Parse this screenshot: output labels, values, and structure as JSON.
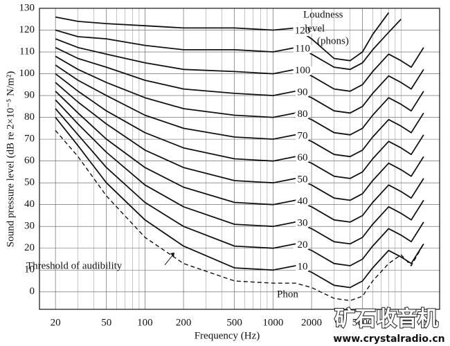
{
  "chart_data": {
    "type": "line",
    "x_label": "Frequency (Hz)",
    "y_label": "Sound pressure level (dB re 2×10⁻⁵ N/m²)",
    "x_scale": "log",
    "xlim": [
      15,
      20000
    ],
    "ylim": [
      -8,
      130
    ],
    "xticks": [
      20,
      50,
      100,
      200,
      500,
      1000,
      2000,
      5000
    ],
    "xminor": [
      30,
      40,
      60,
      70,
      80,
      90,
      300,
      400,
      600,
      700,
      800,
      900,
      3000,
      4000,
      6000,
      7000,
      8000,
      9000,
      10000
    ],
    "yticks": [
      0,
      10,
      20,
      30,
      40,
      50,
      60,
      70,
      80,
      90,
      100,
      110,
      120,
      130
    ],
    "grid": true,
    "x": [
      20,
      30,
      50,
      100,
      200,
      500,
      1000,
      1500,
      2000,
      3000,
      4000,
      5000,
      6000,
      8000,
      10000,
      12000,
      15000
    ],
    "series": [
      {
        "name": "Threshold of audibility",
        "color": "#111111",
        "style": "dashed",
        "values": [
          74,
          62,
          44,
          25,
          13,
          5,
          4,
          4,
          2,
          -3,
          -4,
          -2,
          5,
          13,
          17,
          12,
          22
        ]
      },
      {
        "name": "10",
        "color": "#111111",
        "values": [
          80,
          67,
          50,
          33,
          21,
          11,
          10,
          12,
          9,
          3,
          2,
          5,
          11,
          19,
          16,
          13,
          22
        ]
      },
      {
        "name": "20",
        "color": "#111111",
        "values": [
          84,
          72,
          57,
          41,
          30,
          21,
          20,
          22,
          19,
          13,
          12,
          15,
          21,
          29,
          26,
          23,
          32
        ]
      },
      {
        "name": "30",
        "color": "#111111",
        "values": [
          88,
          77,
          64,
          49,
          39,
          31,
          30,
          32,
          29,
          23,
          22,
          25,
          31,
          39,
          36,
          33,
          42
        ]
      },
      {
        "name": "40",
        "color": "#111111",
        "values": [
          92,
          82,
          70,
          57,
          48,
          41,
          40,
          42,
          39,
          33,
          32,
          35,
          41,
          49,
          46,
          43,
          52
        ]
      },
      {
        "name": "50",
        "color": "#111111",
        "values": [
          96,
          87,
          77,
          65,
          57,
          51,
          50,
          52,
          49,
          43,
          42,
          45,
          51,
          59,
          56,
          53,
          62
        ]
      },
      {
        "name": "60",
        "color": "#111111",
        "values": [
          100,
          92,
          83,
          73,
          66,
          61,
          60,
          62,
          59,
          53,
          52,
          55,
          61,
          69,
          66,
          63,
          72
        ]
      },
      {
        "name": "70",
        "color": "#111111",
        "values": [
          104,
          97,
          90,
          81,
          75,
          71,
          70,
          72,
          69,
          63,
          62,
          65,
          71,
          79,
          76,
          73,
          82
        ]
      },
      {
        "name": "80",
        "color": "#111111",
        "values": [
          108,
          102,
          96,
          89,
          84,
          81,
          80,
          82,
          79,
          73,
          72,
          75,
          81,
          89,
          86,
          83,
          92
        ]
      },
      {
        "name": "90",
        "color": "#111111",
        "values": [
          112,
          107,
          103,
          97,
          93,
          91,
          90,
          92,
          89,
          83,
          82,
          85,
          91,
          99,
          96,
          93,
          102
        ]
      },
      {
        "name": "100",
        "color": "#111111",
        "values": [
          116,
          112,
          109,
          105,
          102,
          101,
          100,
          102,
          99,
          93,
          92,
          95,
          101,
          109,
          106,
          103,
          112
        ]
      },
      {
        "name": "110",
        "color": "#111111",
        "values": [
          120,
          117,
          116,
          113,
          111,
          111,
          110,
          112,
          109,
          103,
          102,
          105,
          111,
          119,
          125,
          null,
          null
        ]
      },
      {
        "name": "120",
        "color": "#111111",
        "values": [
          126,
          124,
          123,
          122,
          121,
          121,
          120,
          121,
          116,
          107,
          106,
          110,
          118,
          128,
          null,
          null,
          null
        ]
      }
    ],
    "annotations": {
      "loudness_level": [
        "Loudness",
        "level",
        "(phons)"
      ],
      "phon": "Phon"
    },
    "watermark": {
      "title": "矿石收音机",
      "url": "www.crystalradio.cn"
    }
  }
}
